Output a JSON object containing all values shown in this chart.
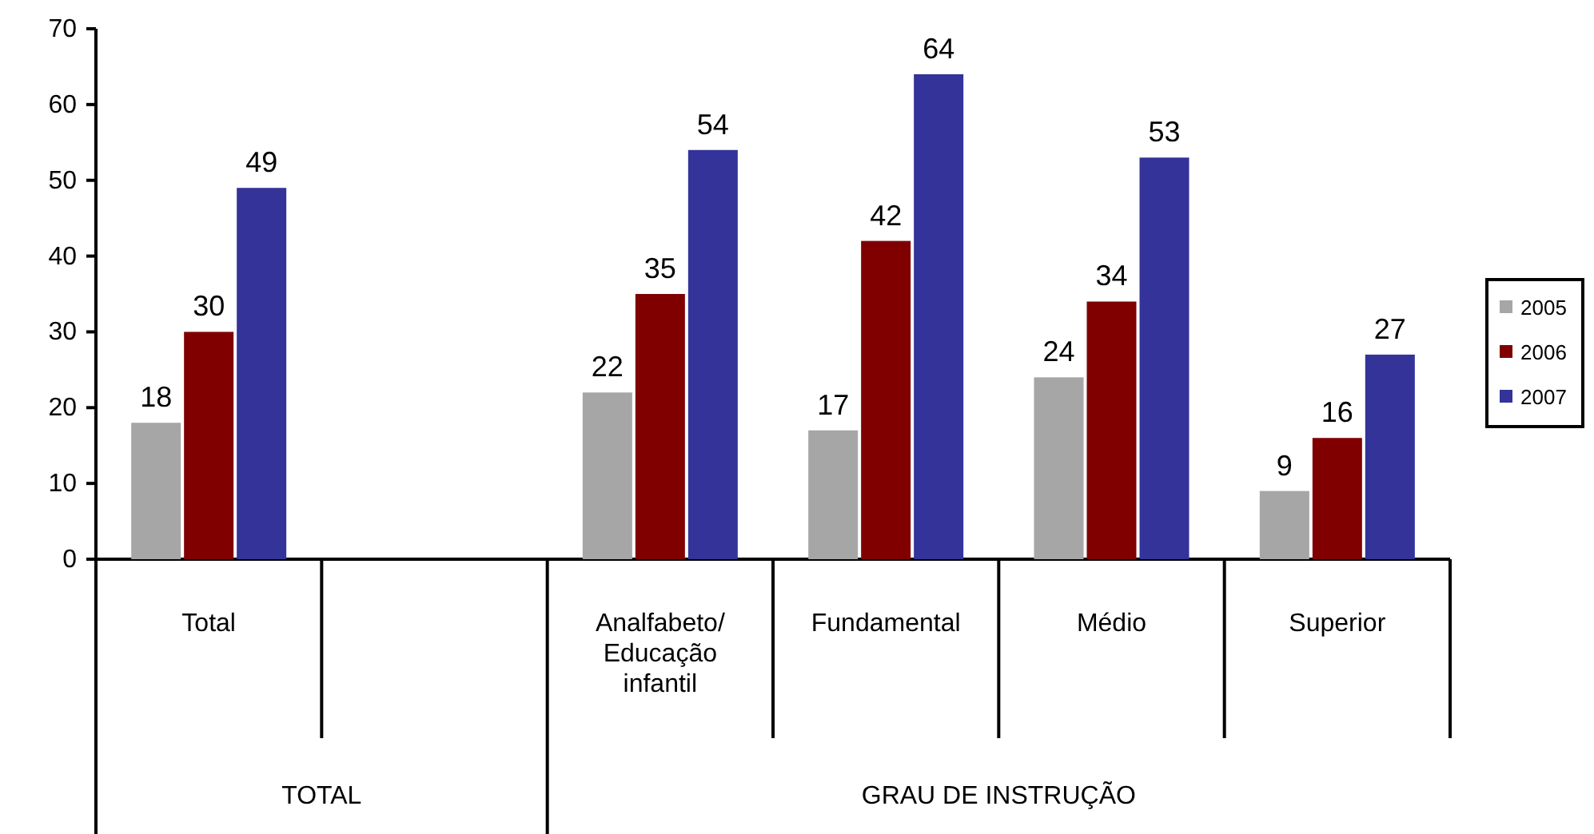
{
  "chart_data": {
    "type": "bar",
    "categories": [
      "Total",
      null,
      "Analfabeto/ Educação infantil",
      "Fundamental",
      "Médio",
      "Superior"
    ],
    "series": [
      {
        "name": "2005",
        "color": "#a6a6a6",
        "values": [
          18,
          null,
          22,
          17,
          24,
          9
        ]
      },
      {
        "name": "2006",
        "color": "#800000",
        "values": [
          30,
          null,
          35,
          42,
          34,
          16
        ]
      },
      {
        "name": "2007",
        "color": "#333399",
        "values": [
          49,
          null,
          54,
          64,
          53,
          27
        ]
      }
    ],
    "ylim": [
      0,
      70
    ],
    "yticks": [
      0,
      10,
      20,
      30,
      40,
      50,
      60,
      70
    ],
    "data_labels": true,
    "legend": "right",
    "grid": false,
    "annotations": [
      "TOTAL",
      "GRAU DE INSTRUÇÃO"
    ]
  }
}
